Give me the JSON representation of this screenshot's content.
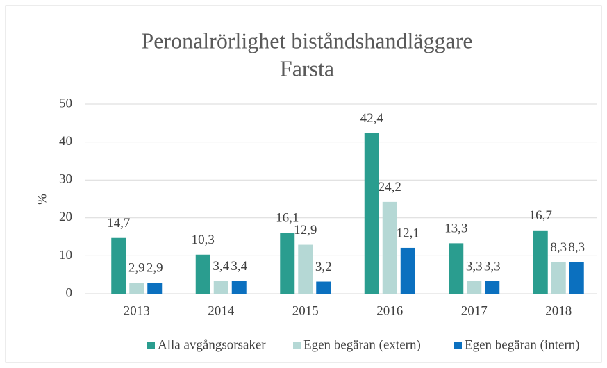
{
  "chart_data": {
    "type": "bar",
    "title": [
      "Peronalrörlighet biståndshandläggare",
      "Farsta"
    ],
    "y_label": "%",
    "categories": [
      "2013",
      "2014",
      "2015",
      "2016",
      "2017",
      "2018"
    ],
    "series": [
      {
        "name": "Alla avgångsorsaker",
        "color": "#2a9d8f",
        "values": [
          14.7,
          10.3,
          16.1,
          42.4,
          13.3,
          16.7
        ],
        "value_labels": [
          "14,7",
          "10,3",
          "16,1",
          "42,4",
          "13,3",
          "16,7"
        ]
      },
      {
        "name": "Egen begäran (extern)",
        "color": "#b5d8d5",
        "values": [
          2.9,
          3.4,
          12.9,
          24.2,
          3.3,
          8.3
        ],
        "value_labels": [
          "2,9",
          "3,4",
          "12,9",
          "24,2",
          "3,3",
          "8,3"
        ]
      },
      {
        "name": "Egen begäran (intern)",
        "color": "#0b70bf",
        "values": [
          2.9,
          3.4,
          3.2,
          12.1,
          3.3,
          8.3
        ],
        "value_labels": [
          "2,9",
          "3,4",
          "3,2",
          "12,1",
          "3,3",
          "8,3"
        ]
      }
    ],
    "ylim": [
      0,
      50
    ],
    "yticks": [
      0,
      10,
      20,
      30,
      40,
      50
    ],
    "grid": true,
    "legend": "bottom"
  }
}
